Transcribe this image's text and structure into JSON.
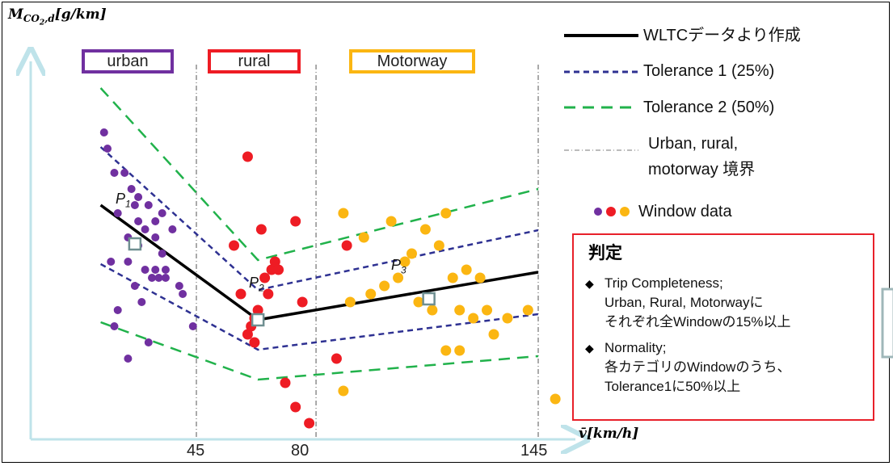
{
  "chart_data": {
    "type": "scatter",
    "xlabel": "v̄[km/h]",
    "ylabel": "M_CO2,d[g/km]",
    "x_ticks": [
      "45",
      "80",
      "145"
    ],
    "regions": [
      {
        "label": "urban",
        "color": "#7030a0"
      },
      {
        "label": "rural",
        "color": "#ee1c24"
      },
      {
        "label": "Motorway",
        "color": "#fbb612"
      }
    ],
    "legend": {
      "wltc": "WLTCデータより作成",
      "tol1": "Tolerance 1 (25%)",
      "tol2": "Tolerance 2 (50%)",
      "boundary_line1": "Urban, rural,",
      "boundary_line2": "motorway 境界",
      "window": "Window data"
    },
    "points": {
      "p1": {
        "label": "P",
        "sub": "1",
        "x": 27,
        "y": 242
      },
      "p2": {
        "label": "P",
        "sub": "2",
        "x": 63,
        "y": 148
      },
      "p3": {
        "label": "P",
        "sub": "3",
        "x": 113,
        "y": 174
      }
    },
    "series": [
      {
        "name": "WLTCデータより作成",
        "style": "solid",
        "color": "#000000",
        "x": [
          17,
          63,
          145
        ],
        "y": [
          290,
          148,
          207
        ]
      },
      {
        "name": "Tolerance 1 (25%)",
        "style": "dash",
        "color": "#2e3192",
        "x": [
          17,
          63,
          145
        ],
        "y": [
          362,
          185,
          259
        ]
      },
      {
        "name": "Tolerance 1 (25%)",
        "style": "dash",
        "color": "#2e3192",
        "x": [
          17,
          63,
          145
        ],
        "y": [
          217,
          111,
          155
        ]
      },
      {
        "name": "Tolerance 2 (50%)",
        "style": "dash",
        "color": "#21b24b",
        "x": [
          17,
          63,
          145
        ],
        "y": [
          435,
          222,
          310
        ]
      },
      {
        "name": "Tolerance 2 (50%)",
        "style": "dash",
        "color": "#21b24b",
        "x": [
          17,
          63,
          145
        ],
        "y": [
          145,
          74,
          103
        ]
      }
    ],
    "scatter_series": [
      {
        "name": "urban",
        "color": "#7030a0",
        "x": [
          18,
          18,
          21,
          19,
          22,
          25,
          27,
          28,
          31,
          33,
          35,
          24,
          26,
          28,
          30,
          33,
          35,
          38,
          20,
          25,
          28,
          32,
          36,
          41,
          22,
          27,
          34,
          30,
          33,
          36,
          29,
          21,
          25,
          40,
          31,
          44
        ],
        "y": [
          470,
          380,
          330,
          360,
          280,
          250,
          290,
          300,
          290,
          270,
          230,
          330,
          310,
          270,
          260,
          250,
          280,
          260,
          220,
          220,
          240,
          200,
          200,
          180,
          160,
          190,
          200,
          210,
          210,
          210,
          170,
          140,
          100,
          190,
          120,
          140
        ]
      },
      {
        "name": "rural",
        "color": "#ee1c24",
        "x": [
          60,
          64,
          67,
          65,
          66,
          63,
          61,
          56,
          68,
          76,
          58,
          60,
          62,
          69,
          74,
          71,
          89,
          86,
          74,
          78,
          62
        ],
        "y": [
          350,
          260,
          210,
          200,
          180,
          160,
          140,
          240,
          220,
          170,
          180,
          130,
          120,
          210,
          270,
          70,
          240,
          100,
          40,
          20,
          150
        ]
      },
      {
        "name": "Motorway",
        "color": "#fbb612",
        "x": [
          88,
          94,
          102,
          106,
          108,
          112,
          116,
          118,
          120,
          124,
          128,
          90,
          96,
          100,
          104,
          110,
          114,
          122,
          126,
          130,
          132,
          136,
          142,
          150,
          88,
          118,
          122
        ],
        "y": [
          280,
          250,
          270,
          220,
          230,
          260,
          240,
          280,
          200,
          210,
          200,
          170,
          180,
          190,
          200,
          170,
          160,
          160,
          150,
          160,
          130,
          150,
          160,
          50,
          60,
          110,
          110
        ]
      }
    ]
  }
}
